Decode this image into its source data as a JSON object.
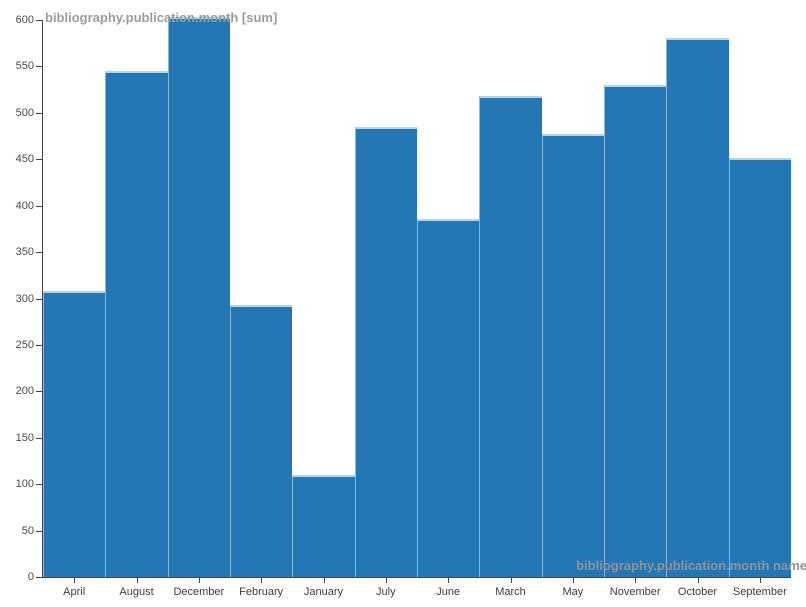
{
  "chart": {
    "title": "bibliography.publication.month [sum]",
    "x_axis_title": "bibliography.publication.month name",
    "bar_color": "#2277b4",
    "bar_edge_color": "#9ec4e0",
    "title_color": "#9b9b9b",
    "axis_color": "#444444",
    "background_color": "#ffffff"
  },
  "chart_data": {
    "type": "bar",
    "title": "bibliography.publication.month [sum]",
    "xlabel": "bibliography.publication.month name",
    "ylabel": "",
    "categories": [
      "April",
      "August",
      "December",
      "February",
      "January",
      "July",
      "June",
      "March",
      "May",
      "November",
      "October",
      "September"
    ],
    "values": [
      308,
      545,
      603,
      293,
      110,
      485,
      386,
      518,
      477,
      530,
      581,
      451
    ],
    "ylim": [
      0,
      600
    ],
    "ytick_interval": 50,
    "grid": false,
    "legend_position": "none"
  }
}
